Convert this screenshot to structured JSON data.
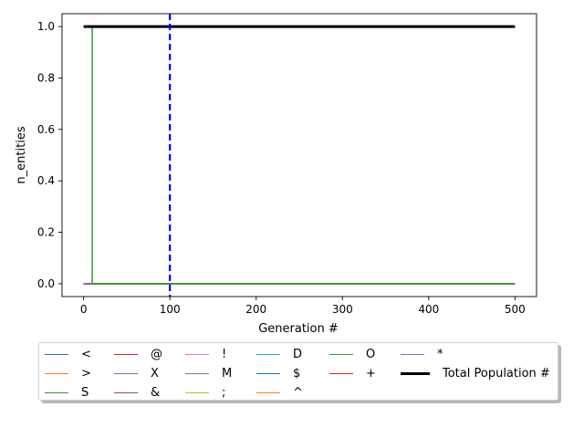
{
  "chart_data": {
    "type": "line",
    "xlabel": "Generation #",
    "ylabel": "n_entities",
    "xlim": [
      -25,
      525
    ],
    "ylim": [
      -0.05,
      1.05
    ],
    "x_ticks": [
      0,
      100,
      200,
      300,
      400,
      500
    ],
    "x_tick_labels": [
      "0",
      "100",
      "200",
      "300",
      "400",
      "500"
    ],
    "y_ticks": [
      0.0,
      0.2,
      0.4,
      0.6,
      0.8,
      1.0
    ],
    "y_tick_labels": [
      "0.0",
      "0.2",
      "0.4",
      "0.6",
      "0.8",
      "1.0"
    ],
    "grid": false,
    "vline": {
      "x": 100,
      "color": "#0000ff",
      "style": "dashed"
    },
    "series": [
      {
        "name": "<",
        "color": "#1f77b4",
        "x": [
          0,
          500
        ],
        "y": [
          0,
          0
        ]
      },
      {
        "name": ">",
        "color": "#ff7f0e",
        "x": [
          0,
          500
        ],
        "y": [
          0,
          0
        ]
      },
      {
        "name": "S",
        "color": "#2ca02c",
        "x": [
          10,
          10,
          500
        ],
        "y": [
          1,
          0,
          0
        ]
      },
      {
        "name": "@",
        "color": "#d62728",
        "x": [
          0,
          500
        ],
        "y": [
          0,
          0
        ]
      },
      {
        "name": "X",
        "color": "#9467bd",
        "x": [
          0,
          500
        ],
        "y": [
          0,
          0
        ]
      },
      {
        "name": "&",
        "color": "#8c564b",
        "x": [
          0,
          500
        ],
        "y": [
          0,
          0
        ]
      },
      {
        "name": "!",
        "color": "#e377c2",
        "x": [
          0,
          500
        ],
        "y": [
          0,
          0
        ]
      },
      {
        "name": "M",
        "color": "#7f7f7f",
        "x": [
          0,
          500
        ],
        "y": [
          0,
          0
        ]
      },
      {
        "name": ";",
        "color": "#bcbd22",
        "x": [
          0,
          500
        ],
        "y": [
          0,
          0
        ]
      },
      {
        "name": "D",
        "color": "#17becf",
        "x": [
          0,
          500
        ],
        "y": [
          0,
          0
        ]
      },
      {
        "name": "$",
        "color": "#1f77b4",
        "x": [
          0,
          500
        ],
        "y": [
          0,
          0
        ]
      },
      {
        "name": "^",
        "color": "#ff7f0e",
        "x": [
          0,
          500
        ],
        "y": [
          0,
          0
        ]
      },
      {
        "name": "O",
        "color": "#2ca02c",
        "x": [
          0,
          500
        ],
        "y": [
          0,
          0
        ]
      },
      {
        "name": "+",
        "color": "#d62728",
        "x": [
          0,
          500
        ],
        "y": [
          0,
          0
        ]
      },
      {
        "name": "*",
        "color": "#9467bd",
        "x": [
          0,
          500
        ],
        "y": [
          0,
          0
        ]
      },
      {
        "name": "Total Population #",
        "color": "#000000",
        "x": [
          0,
          500
        ],
        "y": [
          1,
          1
        ],
        "bold": true
      }
    ],
    "legend": {
      "placement": "below",
      "columns": [
        [
          "<",
          ">",
          "S"
        ],
        [
          "@",
          "X",
          "&"
        ],
        [
          "!",
          "M",
          ";"
        ],
        [
          "D",
          "$",
          "^"
        ],
        [
          "O",
          "+"
        ],
        [
          "*",
          "Total Population #"
        ]
      ]
    }
  }
}
